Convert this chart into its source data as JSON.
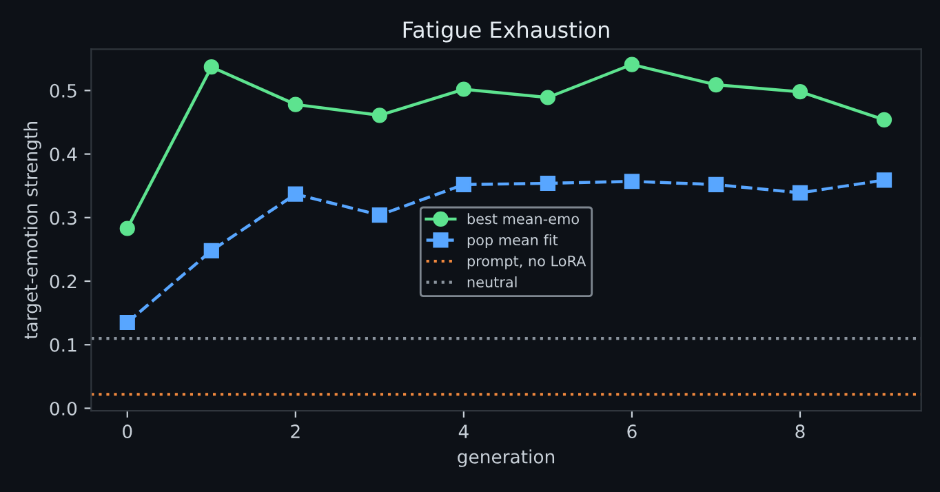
{
  "chart_data": {
    "type": "line",
    "title": "Fatigue Exhaustion",
    "xlabel": "generation",
    "ylabel": "target-emotion strength",
    "x": [
      0,
      1,
      2,
      3,
      4,
      5,
      6,
      7,
      8,
      9
    ],
    "series": [
      {
        "name": "best mean-emo",
        "color": "#5de38f",
        "marker": "circle",
        "line_style": "solid",
        "values": [
          0.283,
          0.537,
          0.478,
          0.461,
          0.502,
          0.489,
          0.541,
          0.509,
          0.498,
          0.454
        ]
      },
      {
        "name": "pop mean fit",
        "color": "#58a6ff",
        "marker": "square",
        "line_style": "dashed",
        "values": [
          0.135,
          0.248,
          0.337,
          0.304,
          0.352,
          0.354,
          0.357,
          0.352,
          0.339,
          0.359
        ]
      }
    ],
    "ref_lines": [
      {
        "axis": "y",
        "value": 0.022,
        "label": "prompt, no LoRA",
        "color": "#f0883e",
        "line_style": "dotted"
      },
      {
        "axis": "y",
        "value": 0.11,
        "label": "neutral",
        "color": "#8b949e",
        "line_style": "dotted"
      }
    ],
    "xlim": [
      -0.43,
      9.44
    ],
    "ylim": [
      -0.004,
      0.565
    ],
    "xticks": [
      0,
      2,
      4,
      6,
      8
    ],
    "yticks": [
      {
        "value": 0,
        "label": "0.0"
      },
      0.1,
      0.2,
      0.3,
      0.4,
      0.5
    ],
    "grid": false,
    "legend": "center"
  }
}
